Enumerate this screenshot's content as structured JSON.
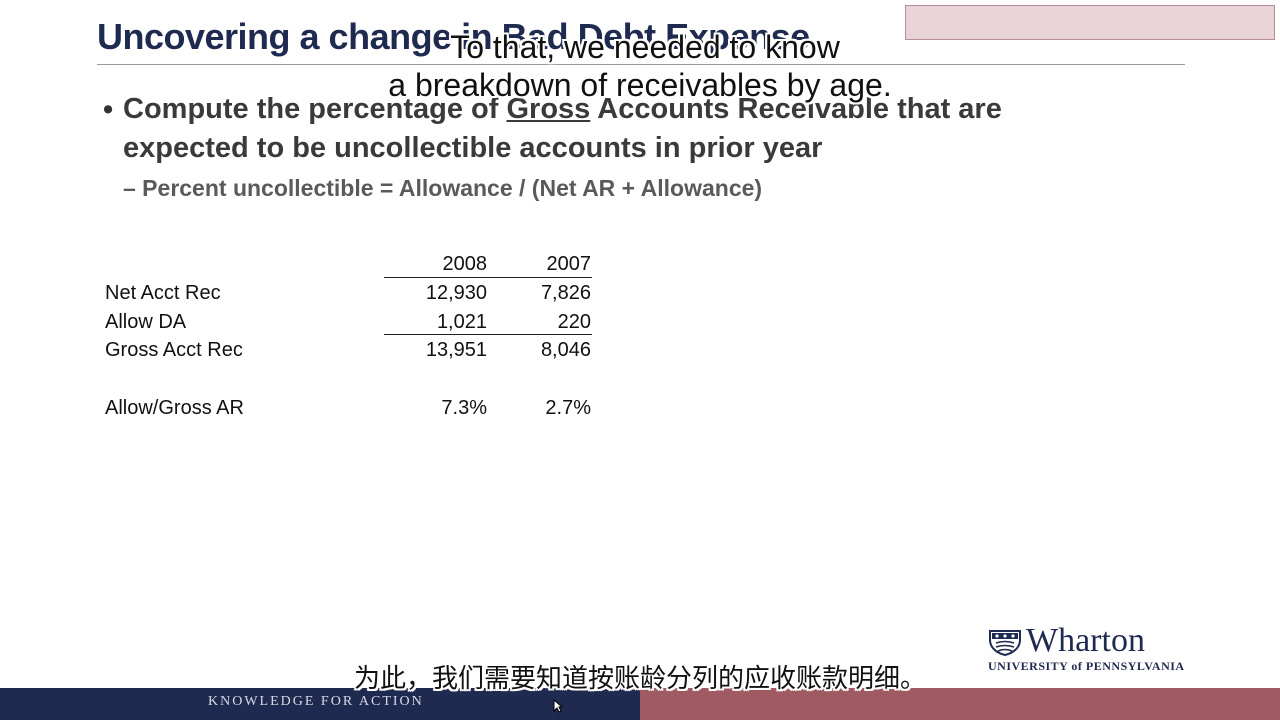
{
  "slide": {
    "title": "Uncovering a change in Bad Debt Expense",
    "bullet_pre": "Compute the percentage of ",
    "bullet_underlined": "Gross",
    "bullet_post": " Accounts Receivable that are expected to be uncollectible accounts in prior year",
    "sub_bullet": "– Percent uncollectible = Allowance / (Net AR + Allowance)"
  },
  "table": {
    "headers": [
      "2008",
      "2007"
    ],
    "rows": [
      {
        "label": "Net Acct Rec",
        "v2008": "12,930",
        "v2007": "7,826"
      },
      {
        "label": "Allow DA",
        "v2008": "1,021",
        "v2007": "220"
      },
      {
        "label": "Gross Acct Rec",
        "v2008": "13,951",
        "v2007": "8,046"
      },
      {
        "label": "Allow/Gross AR",
        "v2008": "7.3%",
        "v2007": "2.7%"
      }
    ]
  },
  "captions": {
    "english_line1": "To that, we needed to know",
    "english_line2": "a breakdown of receivables by age.",
    "chinese": "为此，我们需要知道按账龄分列的应收账款明细。"
  },
  "branding": {
    "logo_name": "Wharton",
    "logo_sub": "UNIVERSITY of PENNSYLVANIA",
    "footer": "KNOWLEDGE FOR ACTION"
  },
  "icons": {
    "logo": "penn-shield-icon",
    "cursor": "mouse-pointer-icon"
  },
  "colors": {
    "navy": "#1f2a50",
    "maroon": "#9f5a62",
    "topbox": "#ead3d8"
  }
}
